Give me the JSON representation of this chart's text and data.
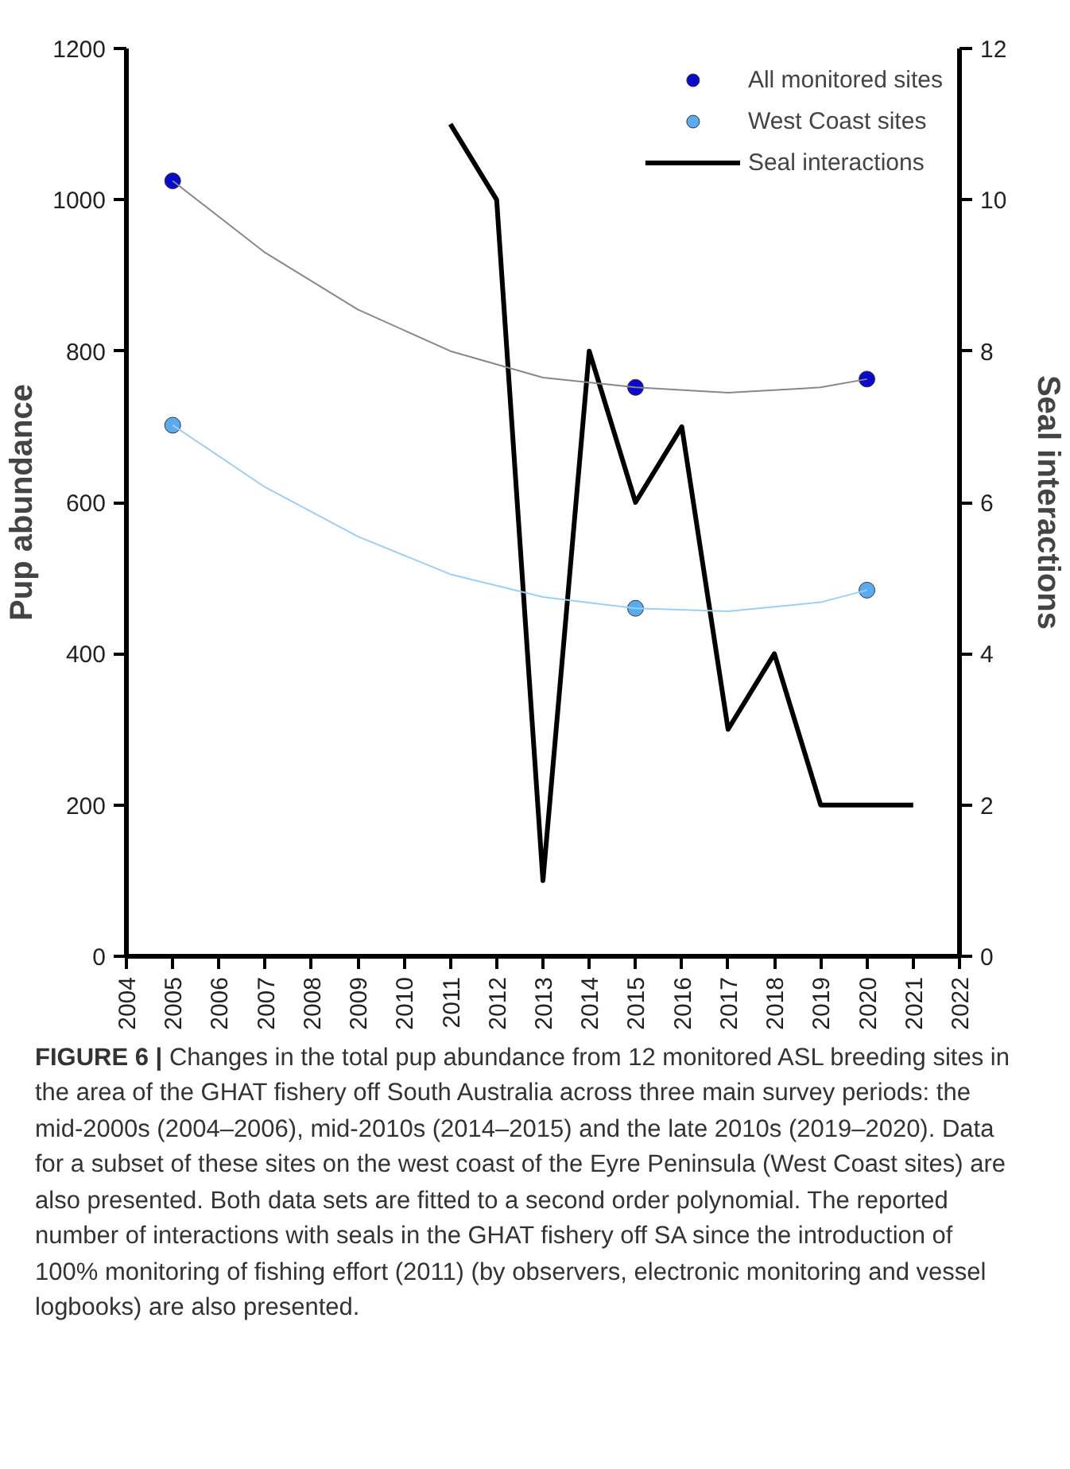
{
  "chart_data": {
    "type": "line",
    "ylabel": "Pup abundance",
    "y2label": "Seal interactions",
    "xlim": [
      2004,
      2022
    ],
    "xticks": [
      2004,
      2005,
      2006,
      2007,
      2008,
      2009,
      2010,
      2011,
      2012,
      2013,
      2014,
      2015,
      2016,
      2017,
      2018,
      2019,
      2020,
      2021,
      2022
    ],
    "ylim": [
      0,
      1200
    ],
    "yticks": [
      0,
      200,
      400,
      600,
      800,
      1000,
      1200
    ],
    "y2lim": [
      0,
      12
    ],
    "y2ticks": [
      0,
      2,
      4,
      6,
      8,
      10,
      12
    ],
    "grid": false,
    "legend": "top right",
    "series": [
      {
        "name": "All monitored sites",
        "type": "scatter",
        "marker": "circle",
        "color": "#0a0acc",
        "x": [
          2005,
          2015,
          2020
        ],
        "values": [
          1025,
          752,
          763
        ]
      },
      {
        "name": "West Coast sites",
        "type": "scatter",
        "marker": "circle",
        "color": "#5aaaf0",
        "x": [
          2005,
          2015,
          2020
        ],
        "values": [
          702,
          460,
          484
        ]
      },
      {
        "name": "Seal interactions",
        "axis": "y2",
        "color": "#000000",
        "x": [
          2011,
          2012,
          2013,
          2014,
          2015,
          2016,
          2017,
          2018,
          2019,
          2020,
          2021
        ],
        "values": [
          11,
          10,
          1,
          8,
          6,
          7,
          3,
          4,
          2,
          2,
          2
        ]
      },
      {
        "color": "#888888",
        "x": [
          2005,
          2007,
          2009,
          2011,
          2013,
          2015,
          2017,
          2019,
          2020
        ],
        "values": [
          1025,
          930,
          855,
          800,
          765,
          752,
          745,
          752,
          763
        ]
      },
      {
        "color": "#9ccff5",
        "x": [
          2005,
          2007,
          2009,
          2011,
          2013,
          2015,
          2017,
          2019,
          2020
        ],
        "values": [
          702,
          620,
          555,
          505,
          475,
          460,
          456,
          468,
          484
        ]
      }
    ],
    "annotations": [
      "FIGURE 6 | Changes in the total pup abundance from 12 monitored ASL breeding sites in the area of the GHAT fishery off South Australia across three main survey periods: the mid-2000s (2004–2006), mid-2010s (2014–2015) and the late 2010s (2019–2020). Data for a subset of these sites on the west coast of the Eyre Peninsula (West Coast sites) are also presented. Both data sets are fitted to a second order polynomial. The reported number of interactions with seals in the GHAT fishery off SA since the introduction of 100% monitoring of fishing effort (2011) (by observers, electronic monitoring and vessel logbooks) are also presented."
    ]
  }
}
